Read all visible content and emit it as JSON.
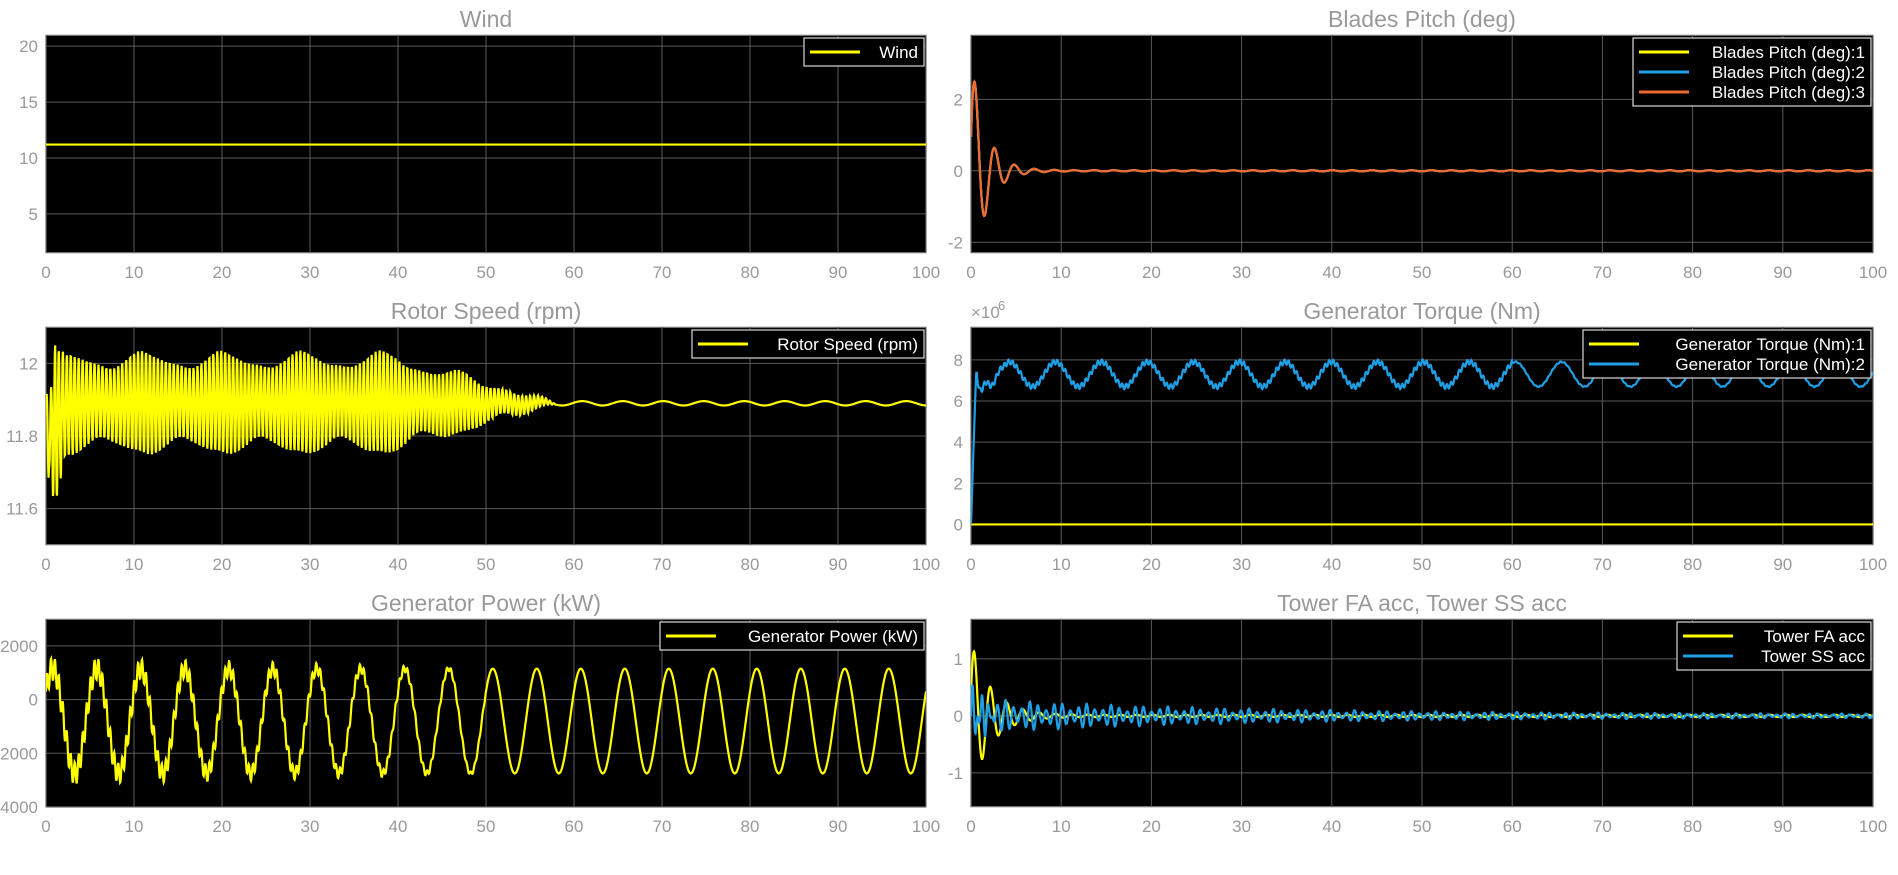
{
  "chart_data": [
    {
      "type": "line",
      "title": "Wind",
      "xlim": [
        0,
        100
      ],
      "ylim": [
        1.5,
        21
      ],
      "xticks": [
        0,
        10,
        20,
        30,
        40,
        50,
        60,
        70,
        80,
        90,
        100
      ],
      "yticks": [
        5,
        10,
        15,
        20
      ],
      "grid": true,
      "legend": "top-right",
      "series": [
        {
          "name": "Wind",
          "color": "#ffff00",
          "kind": "const",
          "value": 11.2
        }
      ]
    },
    {
      "type": "line",
      "title": "Blades Pitch (deg)",
      "xlim": [
        0,
        100
      ],
      "ylim": [
        -2.3,
        3.8
      ],
      "xticks": [
        0,
        10,
        20,
        30,
        40,
        50,
        60,
        70,
        80,
        90,
        100
      ],
      "yticks": [
        -2,
        0,
        2
      ],
      "grid": true,
      "legend": "top-right",
      "series": [
        {
          "name": "Blades Pitch (deg):1",
          "color": "#ffff00",
          "kind": "damped",
          "base": 0,
          "amp": 3.2,
          "period": 2.2,
          "decay": 1.6,
          "floor": 0.015
        },
        {
          "name": "Blades Pitch (deg):2",
          "color": "#1e9fe6",
          "kind": "damped",
          "base": 0,
          "amp": 3.2,
          "period": 2.2,
          "decay": 1.6,
          "floor": 0.015
        },
        {
          "name": "Blades Pitch (deg):3",
          "color": "#f26a30",
          "kind": "damped",
          "base": 0,
          "amp": 3.2,
          "period": 2.2,
          "decay": 1.6,
          "floor": 0.015
        }
      ]
    },
    {
      "type": "line",
      "title": "Rotor Speed (rpm)",
      "xlim": [
        0,
        100
      ],
      "ylim": [
        11.5,
        12.1
      ],
      "xticks": [
        0,
        10,
        20,
        30,
        40,
        50,
        60,
        70,
        80,
        90,
        100
      ],
      "yticks": [
        11.6,
        11.8,
        12
      ],
      "grid": true,
      "legend": "top-right",
      "series": [
        {
          "name": "Rotor Speed (rpm)",
          "color": "#ffff00",
          "kind": "fast",
          "base": 11.89,
          "amp": 0.14,
          "fastPeriod": 0.45,
          "fadeStart": 40,
          "fadeEnd": 58,
          "slowAmp": 0.006,
          "slowPeriod": 4.6
        }
      ]
    },
    {
      "type": "line",
      "title": "Generator Torque (Nm)",
      "exponent": "×10",
      "exponent_power": "6",
      "xlim": [
        0,
        100
      ],
      "ylim": [
        -1,
        9.6
      ],
      "xticks": [
        0,
        10,
        20,
        30,
        40,
        50,
        60,
        70,
        80,
        90,
        100
      ],
      "yticks": [
        0,
        2,
        4,
        6,
        8
      ],
      "grid": true,
      "legend": "top-right",
      "series": [
        {
          "name": "Generator Torque (Nm):1",
          "color": "#ffff00",
          "kind": "const",
          "value": 0
        },
        {
          "name": "Generator Torque (Nm):2",
          "color": "#1e9fe6",
          "kind": "torque",
          "base": 7.3,
          "amp": 0.6,
          "period": 5.1
        }
      ]
    },
    {
      "type": "line",
      "title": "Generator Power (kW)",
      "xlim": [
        0,
        100
      ],
      "ylim": [
        -4000,
        3000
      ],
      "xticks": [
        0,
        10,
        20,
        30,
        40,
        50,
        60,
        70,
        80,
        90,
        100
      ],
      "yticks": [
        -4000,
        -2000,
        0,
        2000
      ],
      "grid": true,
      "legend": "top-right",
      "series": [
        {
          "name": "Generator Power (kW)",
          "color": "#ffff00",
          "kind": "power",
          "base": -800,
          "amp": 1950,
          "period": 5.0,
          "noiseAmp": 450,
          "noiseEnd": 50
        }
      ]
    },
    {
      "type": "line",
      "title": "Tower FA acc, Tower SS acc",
      "xlim": [
        0,
        100
      ],
      "ylim": [
        -1.6,
        1.7
      ],
      "xticks": [
        0,
        10,
        20,
        30,
        40,
        50,
        60,
        70,
        80,
        90,
        100
      ],
      "yticks": [
        -1,
        0,
        1
      ],
      "grid": true,
      "legend": "top-right",
      "series": [
        {
          "name": "Tower FA acc",
          "color": "#ffff00",
          "kind": "damped",
          "base": 0,
          "amp": 1.3,
          "period": 1.8,
          "decay": 2.2,
          "floor": 0.02
        },
        {
          "name": "Tower SS acc",
          "color": "#1e9fe6",
          "kind": "tower",
          "base": 0,
          "amp": 0.28,
          "period": 0.9,
          "decay": 30,
          "floor": 0.03
        }
      ]
    }
  ]
}
